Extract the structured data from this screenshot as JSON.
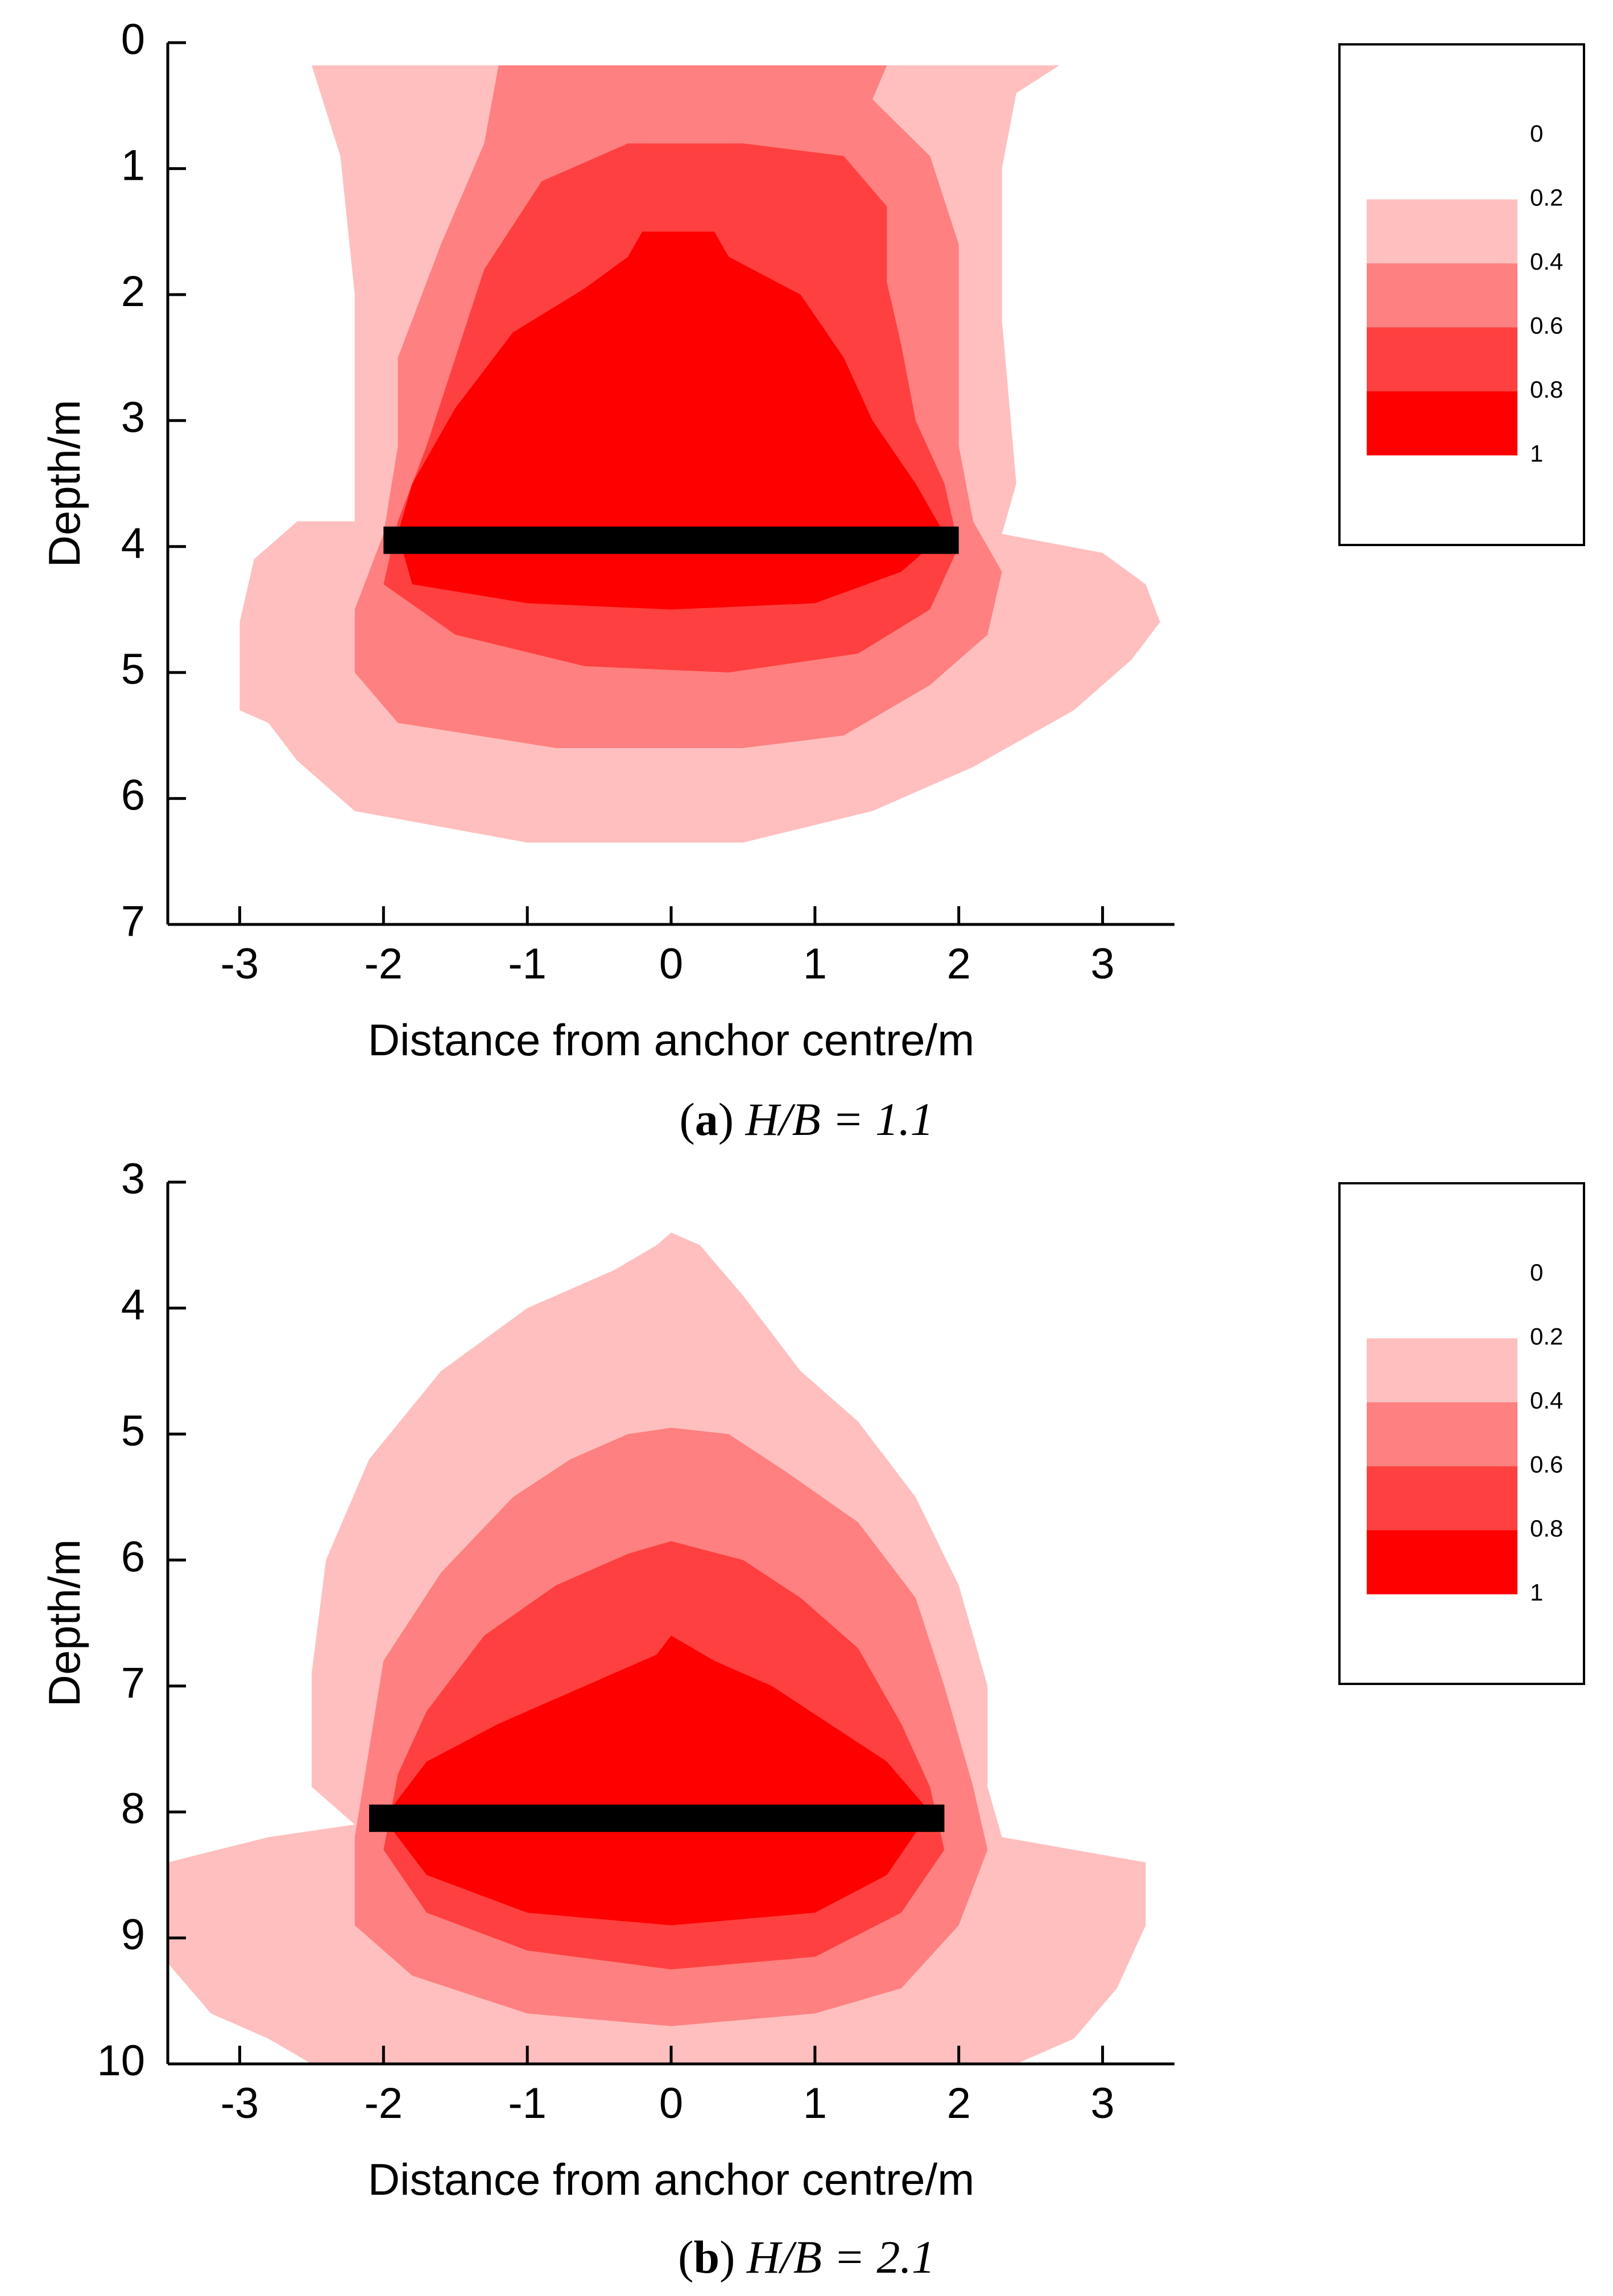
{
  "colors": {
    "levels": [
      "#ffbfbf",
      "#ff8080",
      "#ff4040",
      "#ff0000"
    ],
    "anchor": "#000000",
    "axis": "#000000"
  },
  "chart_data": [
    {
      "type": "heatmap",
      "caption": {
        "letter": "a",
        "text": " H/B = 1.1"
      },
      "xlabel": "Distance from anchor centre/m",
      "ylabel": "Depth/m",
      "xlim": [
        -3.5,
        3.5
      ],
      "ylim": [
        7,
        0
      ],
      "xticks": [
        "-3",
        "-2",
        "-1",
        "0",
        "1",
        "2",
        "3"
      ],
      "yticks": [
        "0",
        "1",
        "2",
        "3",
        "4",
        "5",
        "6",
        "7"
      ],
      "legend": {
        "position": "right",
        "labels": [
          "0",
          "0.2",
          "0.4",
          "0.6",
          "0.8",
          "1"
        ]
      },
      "anchor": {
        "x_start": -2.0,
        "x_end": 2.0,
        "depth": 3.95
      },
      "contours": [
        {
          "level": "0.2-0.4",
          "points": [
            [
              -2.5,
              0.18
            ],
            [
              2.7,
              0.18
            ],
            [
              2.4,
              0.4
            ],
            [
              2.3,
              1.0
            ],
            [
              2.3,
              2.2
            ],
            [
              2.4,
              3.5
            ],
            [
              2.3,
              3.9
            ],
            [
              3.0,
              4.05
            ],
            [
              3.3,
              4.3
            ],
            [
              3.4,
              4.6
            ],
            [
              3.2,
              4.9
            ],
            [
              2.8,
              5.3
            ],
            [
              2.1,
              5.75
            ],
            [
              1.4,
              6.1
            ],
            [
              0.5,
              6.35
            ],
            [
              -1.0,
              6.35
            ],
            [
              -2.2,
              6.1
            ],
            [
              -2.6,
              5.7
            ],
            [
              -2.8,
              5.4
            ],
            [
              -3.0,
              5.3
            ],
            [
              -3.0,
              4.6
            ],
            [
              -2.9,
              4.1
            ],
            [
              -2.6,
              3.8
            ],
            [
              -2.2,
              3.8
            ],
            [
              -2.2,
              2.0
            ],
            [
              -2.3,
              0.9
            ],
            [
              -2.5,
              0.18
            ]
          ]
        },
        {
          "level": "0.4-0.6",
          "points": [
            [
              -1.2,
              0.18
            ],
            [
              1.5,
              0.18
            ],
            [
              1.4,
              0.45
            ],
            [
              1.8,
              0.9
            ],
            [
              2.0,
              1.6
            ],
            [
              2.0,
              2.5
            ],
            [
              2.0,
              3.2
            ],
            [
              2.1,
              3.8
            ],
            [
              2.3,
              4.2
            ],
            [
              2.2,
              4.7
            ],
            [
              1.8,
              5.1
            ],
            [
              1.2,
              5.5
            ],
            [
              0.5,
              5.6
            ],
            [
              -0.8,
              5.6
            ],
            [
              -1.9,
              5.4
            ],
            [
              -2.2,
              5.0
            ],
            [
              -2.2,
              4.5
            ],
            [
              -2.0,
              3.9
            ],
            [
              -1.9,
              3.2
            ],
            [
              -1.9,
              2.5
            ],
            [
              -1.6,
              1.6
            ],
            [
              -1.3,
              0.8
            ],
            [
              -1.2,
              0.18
            ]
          ]
        },
        {
          "level": "0.6-0.8",
          "points": [
            [
              -0.9,
              1.1
            ],
            [
              -0.3,
              0.8
            ],
            [
              0.5,
              0.8
            ],
            [
              1.2,
              0.9
            ],
            [
              1.5,
              1.3
            ],
            [
              1.5,
              1.9
            ],
            [
              1.6,
              2.4
            ],
            [
              1.7,
              3.0
            ],
            [
              1.9,
              3.5
            ],
            [
              2.0,
              4.0
            ],
            [
              1.8,
              4.5
            ],
            [
              1.3,
              4.85
            ],
            [
              0.4,
              5.0
            ],
            [
              -0.6,
              4.95
            ],
            [
              -1.5,
              4.7
            ],
            [
              -2.0,
              4.3
            ],
            [
              -1.9,
              3.8
            ],
            [
              -1.7,
              3.2
            ],
            [
              -1.5,
              2.5
            ],
            [
              -1.3,
              1.8
            ],
            [
              -0.9,
              1.1
            ]
          ]
        },
        {
          "level": "0.8-1",
          "points": [
            [
              -0.3,
              1.7
            ],
            [
              -0.2,
              1.5
            ],
            [
              0.3,
              1.5
            ],
            [
              0.4,
              1.7
            ],
            [
              0.9,
              2.0
            ],
            [
              1.2,
              2.5
            ],
            [
              1.4,
              3.0
            ],
            [
              1.7,
              3.5
            ],
            [
              1.9,
              3.9
            ],
            [
              1.6,
              4.2
            ],
            [
              1.0,
              4.45
            ],
            [
              0.0,
              4.5
            ],
            [
              -1.0,
              4.45
            ],
            [
              -1.8,
              4.3
            ],
            [
              -1.9,
              3.9
            ],
            [
              -1.8,
              3.5
            ],
            [
              -1.5,
              2.9
            ],
            [
              -1.1,
              2.3
            ],
            [
              -0.6,
              1.95
            ],
            [
              -0.3,
              1.7
            ]
          ]
        }
      ]
    },
    {
      "type": "heatmap",
      "caption": {
        "letter": "b",
        "text": " H/B = 2.1"
      },
      "xlabel": "Distance from anchor centre/m",
      "ylabel": "Depth/m",
      "xlim": [
        -3.5,
        3.5
      ],
      "ylim": [
        10,
        3
      ],
      "xticks": [
        "-3",
        "-2",
        "-1",
        "0",
        "1",
        "2",
        "3"
      ],
      "yticks": [
        "3",
        "4",
        "5",
        "6",
        "7",
        "8",
        "9",
        "10"
      ],
      "legend": {
        "position": "right",
        "labels": [
          "0",
          "0.2",
          "0.4",
          "0.6",
          "0.8",
          "1"
        ]
      },
      "anchor": {
        "x_start": -2.1,
        "x_end": 1.9,
        "depth": 8.05
      },
      "contours": [
        {
          "level": "0.2-0.4",
          "points": [
            [
              -0.1,
              3.5
            ],
            [
              0.0,
              3.4
            ],
            [
              0.2,
              3.5
            ],
            [
              0.5,
              3.9
            ],
            [
              0.9,
              4.5
            ],
            [
              1.3,
              4.9
            ],
            [
              1.7,
              5.5
            ],
            [
              2.0,
              6.2
            ],
            [
              2.2,
              7.0
            ],
            [
              2.2,
              7.8
            ],
            [
              2.3,
              8.2
            ],
            [
              2.8,
              8.3
            ],
            [
              3.3,
              8.4
            ],
            [
              3.3,
              8.9
            ],
            [
              3.1,
              9.4
            ],
            [
              2.8,
              9.8
            ],
            [
              2.4,
              10.0
            ],
            [
              -2.5,
              10.0
            ],
            [
              -2.8,
              9.8
            ],
            [
              -3.2,
              9.6
            ],
            [
              -3.5,
              9.2
            ],
            [
              -3.5,
              8.4
            ],
            [
              -2.8,
              8.2
            ],
            [
              -2.2,
              8.1
            ],
            [
              -2.5,
              7.8
            ],
            [
              -2.5,
              6.9
            ],
            [
              -2.4,
              6.0
            ],
            [
              -2.1,
              5.2
            ],
            [
              -1.6,
              4.5
            ],
            [
              -1.0,
              4.0
            ],
            [
              -0.4,
              3.7
            ],
            [
              -0.1,
              3.5
            ]
          ]
        },
        {
          "level": "0.4-0.6",
          "points": [
            [
              -0.3,
              5.0
            ],
            [
              0.0,
              4.95
            ],
            [
              0.4,
              5.0
            ],
            [
              0.8,
              5.3
            ],
            [
              1.3,
              5.7
            ],
            [
              1.7,
              6.3
            ],
            [
              1.9,
              7.0
            ],
            [
              2.1,
              7.8
            ],
            [
              2.2,
              8.3
            ],
            [
              2.0,
              8.9
            ],
            [
              1.6,
              9.4
            ],
            [
              1.0,
              9.6
            ],
            [
              0.0,
              9.7
            ],
            [
              -1.0,
              9.6
            ],
            [
              -1.8,
              9.3
            ],
            [
              -2.2,
              8.9
            ],
            [
              -2.2,
              8.2
            ],
            [
              -2.1,
              7.5
            ],
            [
              -2.0,
              6.8
            ],
            [
              -1.6,
              6.1
            ],
            [
              -1.1,
              5.5
            ],
            [
              -0.7,
              5.2
            ],
            [
              -0.3,
              5.0
            ]
          ]
        },
        {
          "level": "0.6-0.8",
          "points": [
            [
              -0.3,
              5.95
            ],
            [
              0.0,
              5.85
            ],
            [
              0.5,
              6.0
            ],
            [
              0.9,
              6.3
            ],
            [
              1.3,
              6.7
            ],
            [
              1.6,
              7.3
            ],
            [
              1.8,
              7.8
            ],
            [
              1.9,
              8.3
            ],
            [
              1.6,
              8.8
            ],
            [
              1.0,
              9.15
            ],
            [
              0.0,
              9.25
            ],
            [
              -1.0,
              9.1
            ],
            [
              -1.7,
              8.8
            ],
            [
              -2.0,
              8.3
            ],
            [
              -1.9,
              7.7
            ],
            [
              -1.7,
              7.2
            ],
            [
              -1.3,
              6.6
            ],
            [
              -0.8,
              6.2
            ],
            [
              -0.3,
              5.95
            ]
          ]
        },
        {
          "level": "0.8-1",
          "points": [
            [
              -0.1,
              6.75
            ],
            [
              0.0,
              6.6
            ],
            [
              0.3,
              6.8
            ],
            [
              0.7,
              7.0
            ],
            [
              1.1,
              7.3
            ],
            [
              1.5,
              7.6
            ],
            [
              1.8,
              8.0
            ],
            [
              1.5,
              8.5
            ],
            [
              1.0,
              8.8
            ],
            [
              0.0,
              8.9
            ],
            [
              -1.0,
              8.8
            ],
            [
              -1.7,
              8.5
            ],
            [
              -2.0,
              8.05
            ],
            [
              -1.7,
              7.6
            ],
            [
              -1.2,
              7.3
            ],
            [
              -0.6,
              7.0
            ],
            [
              -0.1,
              6.75
            ]
          ]
        }
      ]
    }
  ]
}
